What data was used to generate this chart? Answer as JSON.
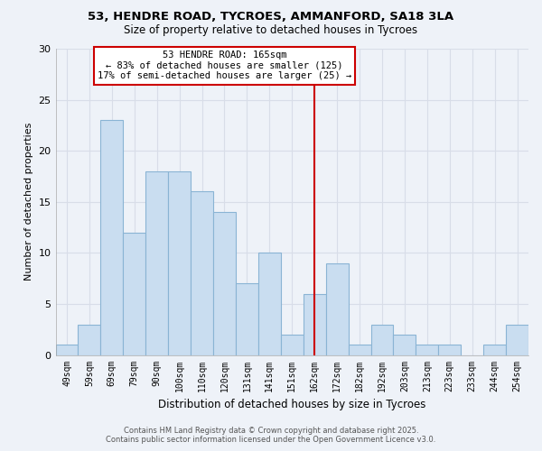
{
  "title_line1": "53, HENDRE ROAD, TYCROES, AMMANFORD, SA18 3LA",
  "title_line2": "Size of property relative to detached houses in Tycroes",
  "xlabel": "Distribution of detached houses by size in Tycroes",
  "ylabel": "Number of detached properties",
  "categories": [
    "49sqm",
    "59sqm",
    "69sqm",
    "79sqm",
    "90sqm",
    "100sqm",
    "110sqm",
    "120sqm",
    "131sqm",
    "141sqm",
    "151sqm",
    "162sqm",
    "172sqm",
    "182sqm",
    "192sqm",
    "203sqm",
    "213sqm",
    "223sqm",
    "233sqm",
    "244sqm",
    "254sqm"
  ],
  "values": [
    1,
    3,
    23,
    12,
    18,
    18,
    16,
    14,
    7,
    10,
    2,
    6,
    9,
    1,
    3,
    2,
    1,
    1,
    0,
    1,
    3
  ],
  "bar_color": "#c9ddf0",
  "bar_edge_color": "#8ab4d4",
  "vline_x": 11,
  "vline_color": "#cc0000",
  "annotation_title": "53 HENDRE ROAD: 165sqm",
  "annotation_line1": "← 83% of detached houses are smaller (125)",
  "annotation_line2": "17% of semi-detached houses are larger (25) →",
  "annotation_box_color": "#ffffff",
  "annotation_box_edge": "#cc0000",
  "ylim": [
    0,
    30
  ],
  "yticks": [
    0,
    5,
    10,
    15,
    20,
    25,
    30
  ],
  "bg_color": "#eef2f8",
  "grid_color": "#d8dde8",
  "footer_line1": "Contains HM Land Registry data © Crown copyright and database right 2025.",
  "footer_line2": "Contains public sector information licensed under the Open Government Licence v3.0."
}
